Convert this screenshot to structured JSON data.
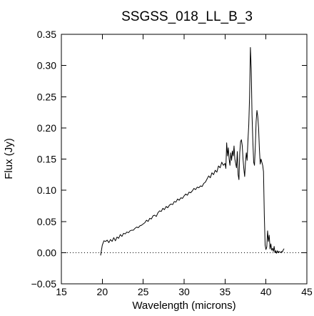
{
  "chart_data": {
    "type": "line",
    "title": "SSGSS_018_LL_B_3",
    "xlabel": "Wavelength (microns)",
    "ylabel": "Flux (Jy)",
    "xlim": [
      15,
      45
    ],
    "ylim": [
      -0.05,
      0.35
    ],
    "xticks": [
      15,
      20,
      25,
      30,
      35,
      40,
      45
    ],
    "yticks": [
      -0.05,
      0.0,
      0.05,
      0.1,
      0.15,
      0.2,
      0.25,
      0.3,
      0.35
    ],
    "xtick_labels": [
      "15",
      "20",
      "25",
      "30",
      "35",
      "40",
      "45"
    ],
    "ytick_labels": [
      "−0.05",
      "0.00",
      "0.05",
      "0.10",
      "0.15",
      "0.20",
      "0.25",
      "0.30",
      "0.35"
    ],
    "reference_line": {
      "y": 0.0,
      "style": "dotted"
    },
    "grid": false,
    "series": [
      {
        "color": "#000000",
        "x": [
          19.8,
          20.0,
          20.2,
          20.4,
          20.6,
          20.8,
          21.0,
          21.2,
          21.4,
          21.6,
          21.8,
          22.0,
          22.2,
          22.4,
          22.6,
          22.8,
          23.0,
          23.2,
          23.4,
          23.6,
          23.8,
          24.0,
          24.2,
          24.4,
          24.6,
          24.8,
          25.0,
          25.2,
          25.4,
          25.6,
          25.8,
          26.0,
          26.2,
          26.4,
          26.6,
          26.8,
          27.0,
          27.2,
          27.4,
          27.6,
          27.8,
          28.0,
          28.2,
          28.4,
          28.6,
          28.8,
          29.0,
          29.2,
          29.4,
          29.6,
          29.8,
          30.0,
          30.2,
          30.4,
          30.6,
          30.8,
          31.0,
          31.2,
          31.4,
          31.6,
          31.8,
          32.0,
          32.2,
          32.4,
          32.6,
          32.8,
          33.0,
          33.2,
          33.4,
          33.6,
          33.8,
          34.0,
          34.2,
          34.4,
          34.6,
          34.8,
          35.0,
          35.1,
          35.2,
          35.3,
          35.4,
          35.5,
          35.6,
          35.7,
          35.8,
          35.9,
          36.0,
          36.1,
          36.2,
          36.3,
          36.4,
          36.5,
          36.6,
          36.7,
          36.8,
          36.9,
          37.0,
          37.1,
          37.2,
          37.3,
          37.4,
          37.5,
          37.6,
          37.7,
          37.8,
          37.9,
          38.0,
          38.1,
          38.2,
          38.3,
          38.4,
          38.5,
          38.6,
          38.7,
          38.8,
          38.9,
          39.0,
          39.1,
          39.2,
          39.3,
          39.4,
          39.5,
          39.6,
          39.7,
          39.8,
          39.9,
          40.0,
          40.1,
          40.2,
          40.3,
          40.4,
          40.5,
          40.6,
          40.7,
          40.8,
          40.9,
          41.0,
          41.1,
          41.2,
          41.3,
          41.4,
          41.5,
          41.6,
          41.7,
          41.8,
          41.9,
          42.0,
          42.1,
          42.2
        ],
        "y": [
          -0.004,
          0.012,
          0.019,
          0.018,
          0.02,
          0.016,
          0.021,
          0.018,
          0.024,
          0.019,
          0.025,
          0.023,
          0.029,
          0.026,
          0.031,
          0.03,
          0.033,
          0.032,
          0.035,
          0.036,
          0.036,
          0.039,
          0.041,
          0.04,
          0.043,
          0.044,
          0.046,
          0.048,
          0.052,
          0.05,
          0.055,
          0.054,
          0.059,
          0.06,
          0.058,
          0.064,
          0.067,
          0.066,
          0.071,
          0.069,
          0.074,
          0.072,
          0.076,
          0.078,
          0.077,
          0.082,
          0.081,
          0.086,
          0.084,
          0.088,
          0.087,
          0.091,
          0.094,
          0.092,
          0.097,
          0.096,
          0.099,
          0.103,
          0.101,
          0.105,
          0.104,
          0.107,
          0.106,
          0.111,
          0.113,
          0.118,
          0.123,
          0.12,
          0.128,
          0.125,
          0.132,
          0.129,
          0.139,
          0.136,
          0.145,
          0.14,
          0.143,
          0.135,
          0.176,
          0.155,
          0.168,
          0.15,
          0.14,
          0.16,
          0.148,
          0.163,
          0.155,
          0.171,
          0.15,
          0.143,
          0.136,
          0.162,
          0.125,
          0.117,
          0.16,
          0.178,
          0.181,
          0.172,
          0.15,
          0.134,
          0.122,
          0.145,
          0.16,
          0.148,
          0.18,
          0.205,
          0.25,
          0.329,
          0.295,
          0.22,
          0.178,
          0.145,
          0.14,
          0.17,
          0.21,
          0.228,
          0.218,
          0.2,
          0.166,
          0.142,
          0.15,
          0.145,
          0.14,
          0.13,
          0.06,
          0.012,
          0.005,
          0.009,
          0.035,
          0.018,
          0.028,
          0.006,
          0.014,
          0.004,
          0.007,
          0.002,
          0.01,
          0.0,
          0.003,
          -0.001,
          0.003,
          0.0,
          0.002,
          0.001,
          0.0,
          0.002,
          0.001,
          0.004,
          0.006
        ]
      }
    ]
  }
}
